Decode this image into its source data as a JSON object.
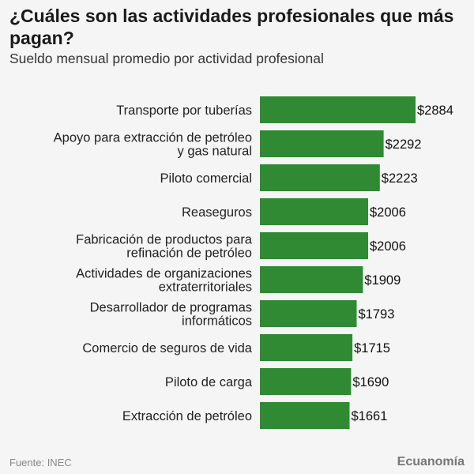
{
  "title": "¿Cuáles son las actividades profesionales que más pagan?",
  "subtitle": "Sueldo mensual promedio por actividad profesional",
  "source": "Fuente: INEC",
  "brand": "Ecuanomía",
  "colors": {
    "bar": "#2f8a33",
    "text": "#222222",
    "background": "#f5f5f5"
  },
  "chart_data": {
    "type": "bar",
    "orientation": "horizontal",
    "title": "¿Cuáles son las actividades profesionales que más pagan?",
    "subtitle": "Sueldo mensual promedio por actividad profesional",
    "value_prefix": "$",
    "categories": [
      [
        "Transporte por tuberías"
      ],
      [
        "Apoyo para extracción de petróleo",
        "y gas natural"
      ],
      [
        "Piloto comercial"
      ],
      [
        "Reaseguros"
      ],
      [
        "Fabricación de productos para",
        "refinación de petróleo"
      ],
      [
        "Actividades de organizaciones",
        "extraterritoriales"
      ],
      [
        "Desarrollador de programas",
        "informáticos"
      ],
      [
        "Comercio de seguros de vida"
      ],
      [
        "Piloto de carga"
      ],
      [
        "Extracción de petróleo"
      ]
    ],
    "values": [
      2884,
      2292,
      2223,
      2006,
      2006,
      1909,
      1793,
      1715,
      1690,
      1661
    ],
    "data_labels": [
      "$2884",
      "$2292",
      "$2223",
      "$2006",
      "$2006",
      "$1909",
      "$1793",
      "$1715",
      "$1690",
      "$1661"
    ],
    "xlim": [
      0,
      2884
    ],
    "grid": false,
    "legend": "none"
  }
}
